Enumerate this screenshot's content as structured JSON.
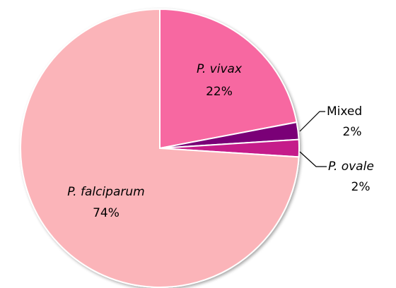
{
  "chart_data": {
    "type": "pie",
    "categories": [
      "P. vivax",
      "Mixed",
      "P. ovale",
      "P. falciparum"
    ],
    "values": [
      22,
      2,
      2,
      74
    ],
    "value_labels": [
      "22%",
      "2%",
      "2%",
      "74%"
    ],
    "colors": [
      "#f768a1",
      "#7a0177",
      "#c51b8a",
      "#fbb4b9"
    ]
  }
}
